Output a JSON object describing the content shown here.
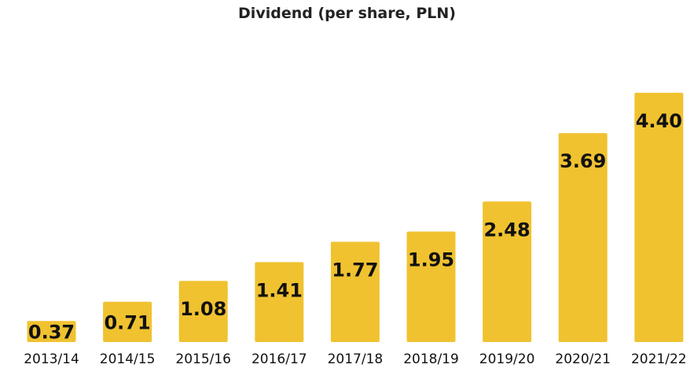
{
  "chart_data": {
    "type": "bar",
    "title": "Dividend (per share, PLN)",
    "xlabel": "",
    "ylabel": "",
    "categories": [
      "2013/14",
      "2014/15",
      "2015/16",
      "2016/17",
      "2017/18",
      "2018/19",
      "2019/20",
      "2020/21",
      "2021/22"
    ],
    "values": [
      0.37,
      0.71,
      1.08,
      1.41,
      1.77,
      1.95,
      2.48,
      3.69,
      4.4
    ],
    "value_labels": [
      "0.37",
      "0.71",
      "1.08",
      "1.41",
      "1.77",
      "1.95",
      "2.48",
      "3.69",
      "4.40"
    ],
    "ylim": [
      0,
      4.4
    ],
    "grid": false,
    "legend": "none",
    "bar_color": "#F0C230"
  }
}
